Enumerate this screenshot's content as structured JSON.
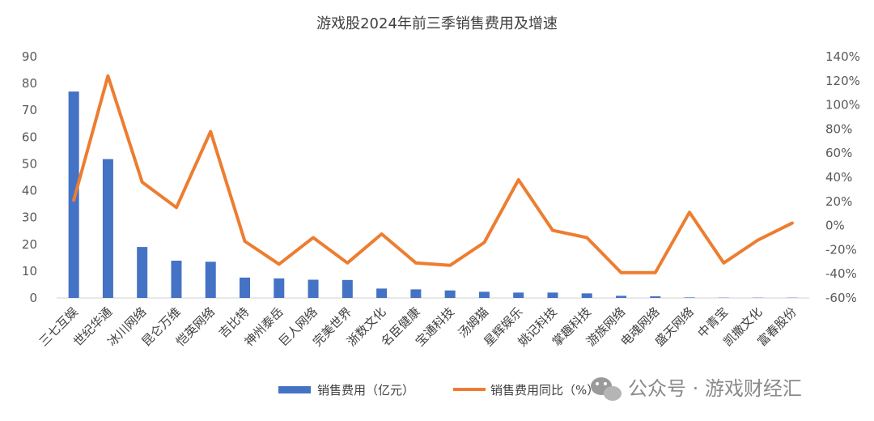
{
  "chart_data": {
    "type": "bar",
    "title": "游戏股2024年前三季销售费用及增速",
    "categories": [
      "三七互娱",
      "世纪华通",
      "冰川网络",
      "昆仑万维",
      "恺英网络",
      "吉比特",
      "神州泰岳",
      "巨人网络",
      "完美世界",
      "浙数文化",
      "名臣健康",
      "宝通科技",
      "汤姆猫",
      "星辉娱乐",
      "姚记科技",
      "掌趣科技",
      "游族网络",
      "电魂网络",
      "盛天网络",
      "中青宝",
      "凯撒文化",
      "富春股份"
    ],
    "series": [
      {
        "name": "销售费用（亿元）",
        "type": "bar",
        "axis": "left",
        "color": "#4472C4",
        "values": [
          77.0,
          51.8,
          19.0,
          13.9,
          13.5,
          7.6,
          7.3,
          6.8,
          6.7,
          3.5,
          3.2,
          2.8,
          2.3,
          2.0,
          2.0,
          1.7,
          0.8,
          0.6,
          0.2,
          0.1,
          0.1,
          0.1
        ]
      },
      {
        "name": "销售费用同比（%）",
        "type": "line",
        "axis": "right",
        "color": "#ED7D31",
        "values": [
          21,
          124,
          36,
          15,
          78,
          -13,
          -32,
          -10,
          -31,
          -7,
          -31,
          -33,
          -14,
          38,
          -4,
          -10,
          -39,
          -39,
          11,
          -31,
          -12,
          2
        ]
      }
    ],
    "y_left": {
      "min": 0,
      "max": 90,
      "step": 10,
      "ticks": [
        "0",
        "10",
        "20",
        "30",
        "40",
        "50",
        "60",
        "70",
        "80",
        "90"
      ]
    },
    "y_right": {
      "min": -60,
      "max": 140,
      "step": 20,
      "ticks": [
        "-60%",
        "-40%",
        "-20%",
        "0%",
        "20%",
        "40%",
        "60%",
        "80%",
        "100%",
        "120%",
        "140%"
      ]
    },
    "grid": false,
    "legend_position": "bottom"
  },
  "watermark": {
    "text": "公众号 · 游戏财经汇",
    "icon": "wechat-icon"
  }
}
